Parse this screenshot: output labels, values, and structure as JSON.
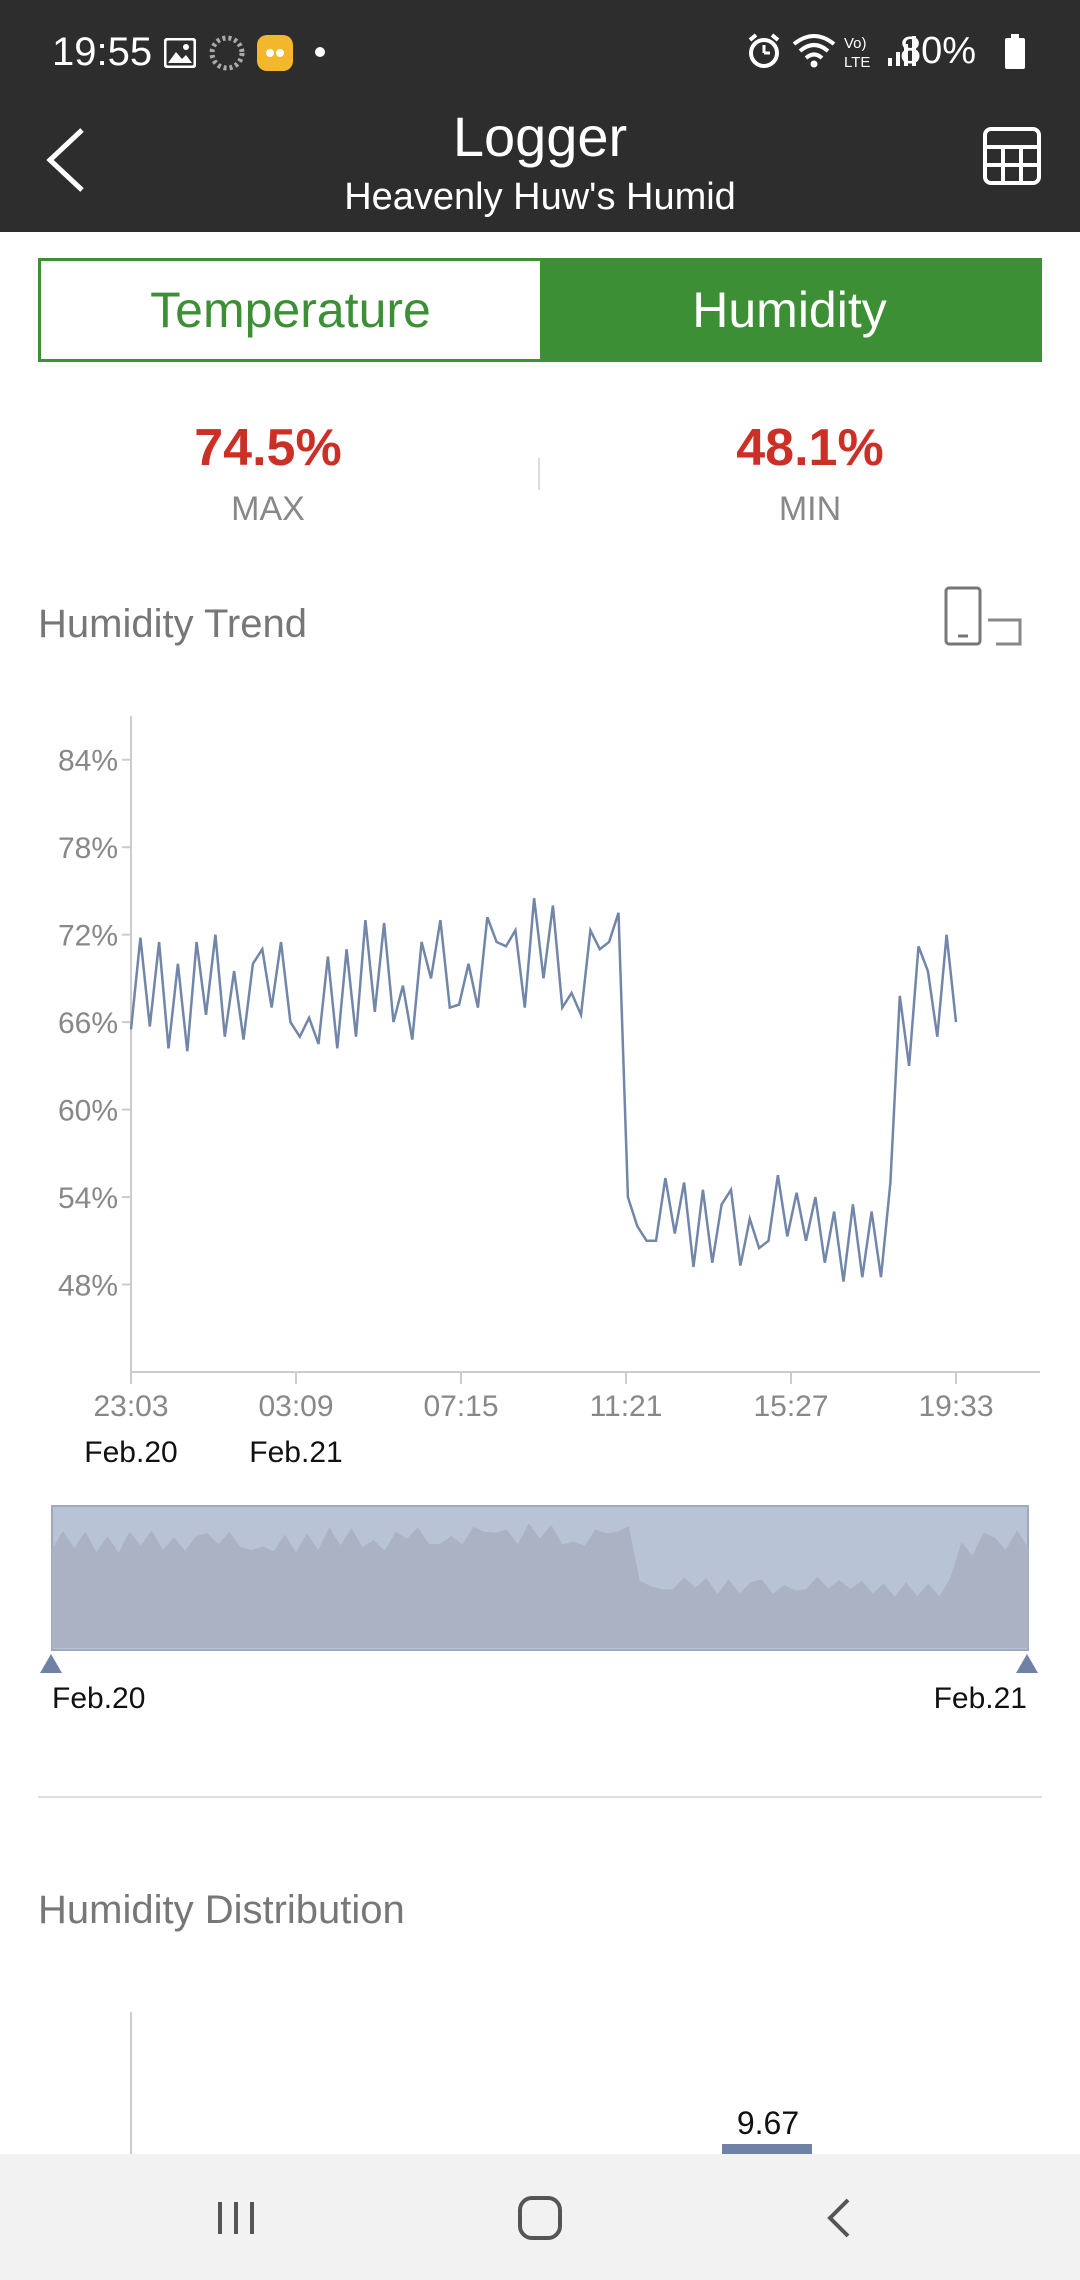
{
  "status_bar": {
    "time": "19:55",
    "battery": "80%",
    "icons": [
      "gallery-icon",
      "loader-icon",
      "app-icon",
      "dot-icon",
      "alarm-icon",
      "wifi-icon",
      "volte-icon",
      "signal-icon",
      "battery-icon"
    ]
  },
  "header": {
    "title": "Logger",
    "subtitle": "Heavenly Huw's Humid",
    "back_icon": "back-arrow-icon",
    "table_icon": "table-icon"
  },
  "tabs": [
    {
      "label": "Temperature",
      "active": false
    },
    {
      "label": "Humidity",
      "active": true
    }
  ],
  "stats": {
    "max": {
      "value": "74.5%",
      "label": "MAX"
    },
    "min": {
      "value": "48.1%",
      "label": "MIN"
    }
  },
  "trend": {
    "title": "Humidity Trend",
    "rotate_icon": "rotate-screen-icon"
  },
  "chart_data": [
    {
      "type": "line",
      "y_ticks": [
        "84%",
        "78%",
        "72%",
        "66%",
        "60%",
        "54%",
        "48%"
      ],
      "ylim": [
        42,
        87
      ],
      "x_ticks": [
        "23:03",
        "03:09",
        "07:15",
        "11:21",
        "15:27",
        "19:33"
      ],
      "x_date_labels": [
        "Feb.20",
        "Feb.21"
      ],
      "line_color": "#7186a8",
      "series": [
        {
          "values": [
            65.5,
            71.8,
            65.7,
            71.5,
            64.2,
            70.0,
            64.0,
            71.5,
            66.5,
            72.0,
            65.0,
            69.5,
            64.8,
            70.0,
            71.0,
            67.0,
            71.5,
            66.0,
            65.0,
            66.3,
            64.5,
            70.5,
            64.2,
            71.0,
            65.0,
            73.0,
            66.7,
            72.8,
            66.0,
            68.5,
            64.8,
            71.5,
            69.0,
            73.0,
            67.0,
            67.2,
            70.0,
            67.0,
            73.2,
            71.5,
            71.2,
            72.3,
            67.0,
            74.5,
            69.0,
            74.0,
            67.0,
            68.0,
            66.5,
            72.3,
            71.0,
            71.5,
            73.5,
            54.0,
            52.0,
            51.0,
            51.0,
            55.3,
            51.5,
            55.0,
            49.2,
            54.5,
            49.5,
            53.5,
            54.5,
            49.3,
            52.5,
            50.5,
            51.0,
            55.5,
            51.3,
            54.3,
            51.0,
            54.0,
            49.5,
            53.0,
            48.2,
            53.5,
            48.5,
            53.0,
            48.5,
            55.0,
            67.8,
            63.0,
            71.2,
            69.5,
            65.0,
            72.0,
            66.0
          ]
        }
      ]
    },
    {
      "type": "area",
      "role": "range-selector",
      "start_label": "Feb.20",
      "end_label": "Feb.21",
      "fill_color": "#aab2c4",
      "background_color": "#b8c3d6"
    },
    {
      "type": "bar",
      "title": "Humidity Distribution",
      "visible_values": [
        {
          "label": "9.67",
          "value": 9.67
        }
      ]
    }
  ],
  "distribution": {
    "title": "Humidity Distribution"
  },
  "nav": {
    "recent_icon": "recent-apps-icon",
    "home_icon": "home-icon",
    "back_icon": "back-icon"
  }
}
